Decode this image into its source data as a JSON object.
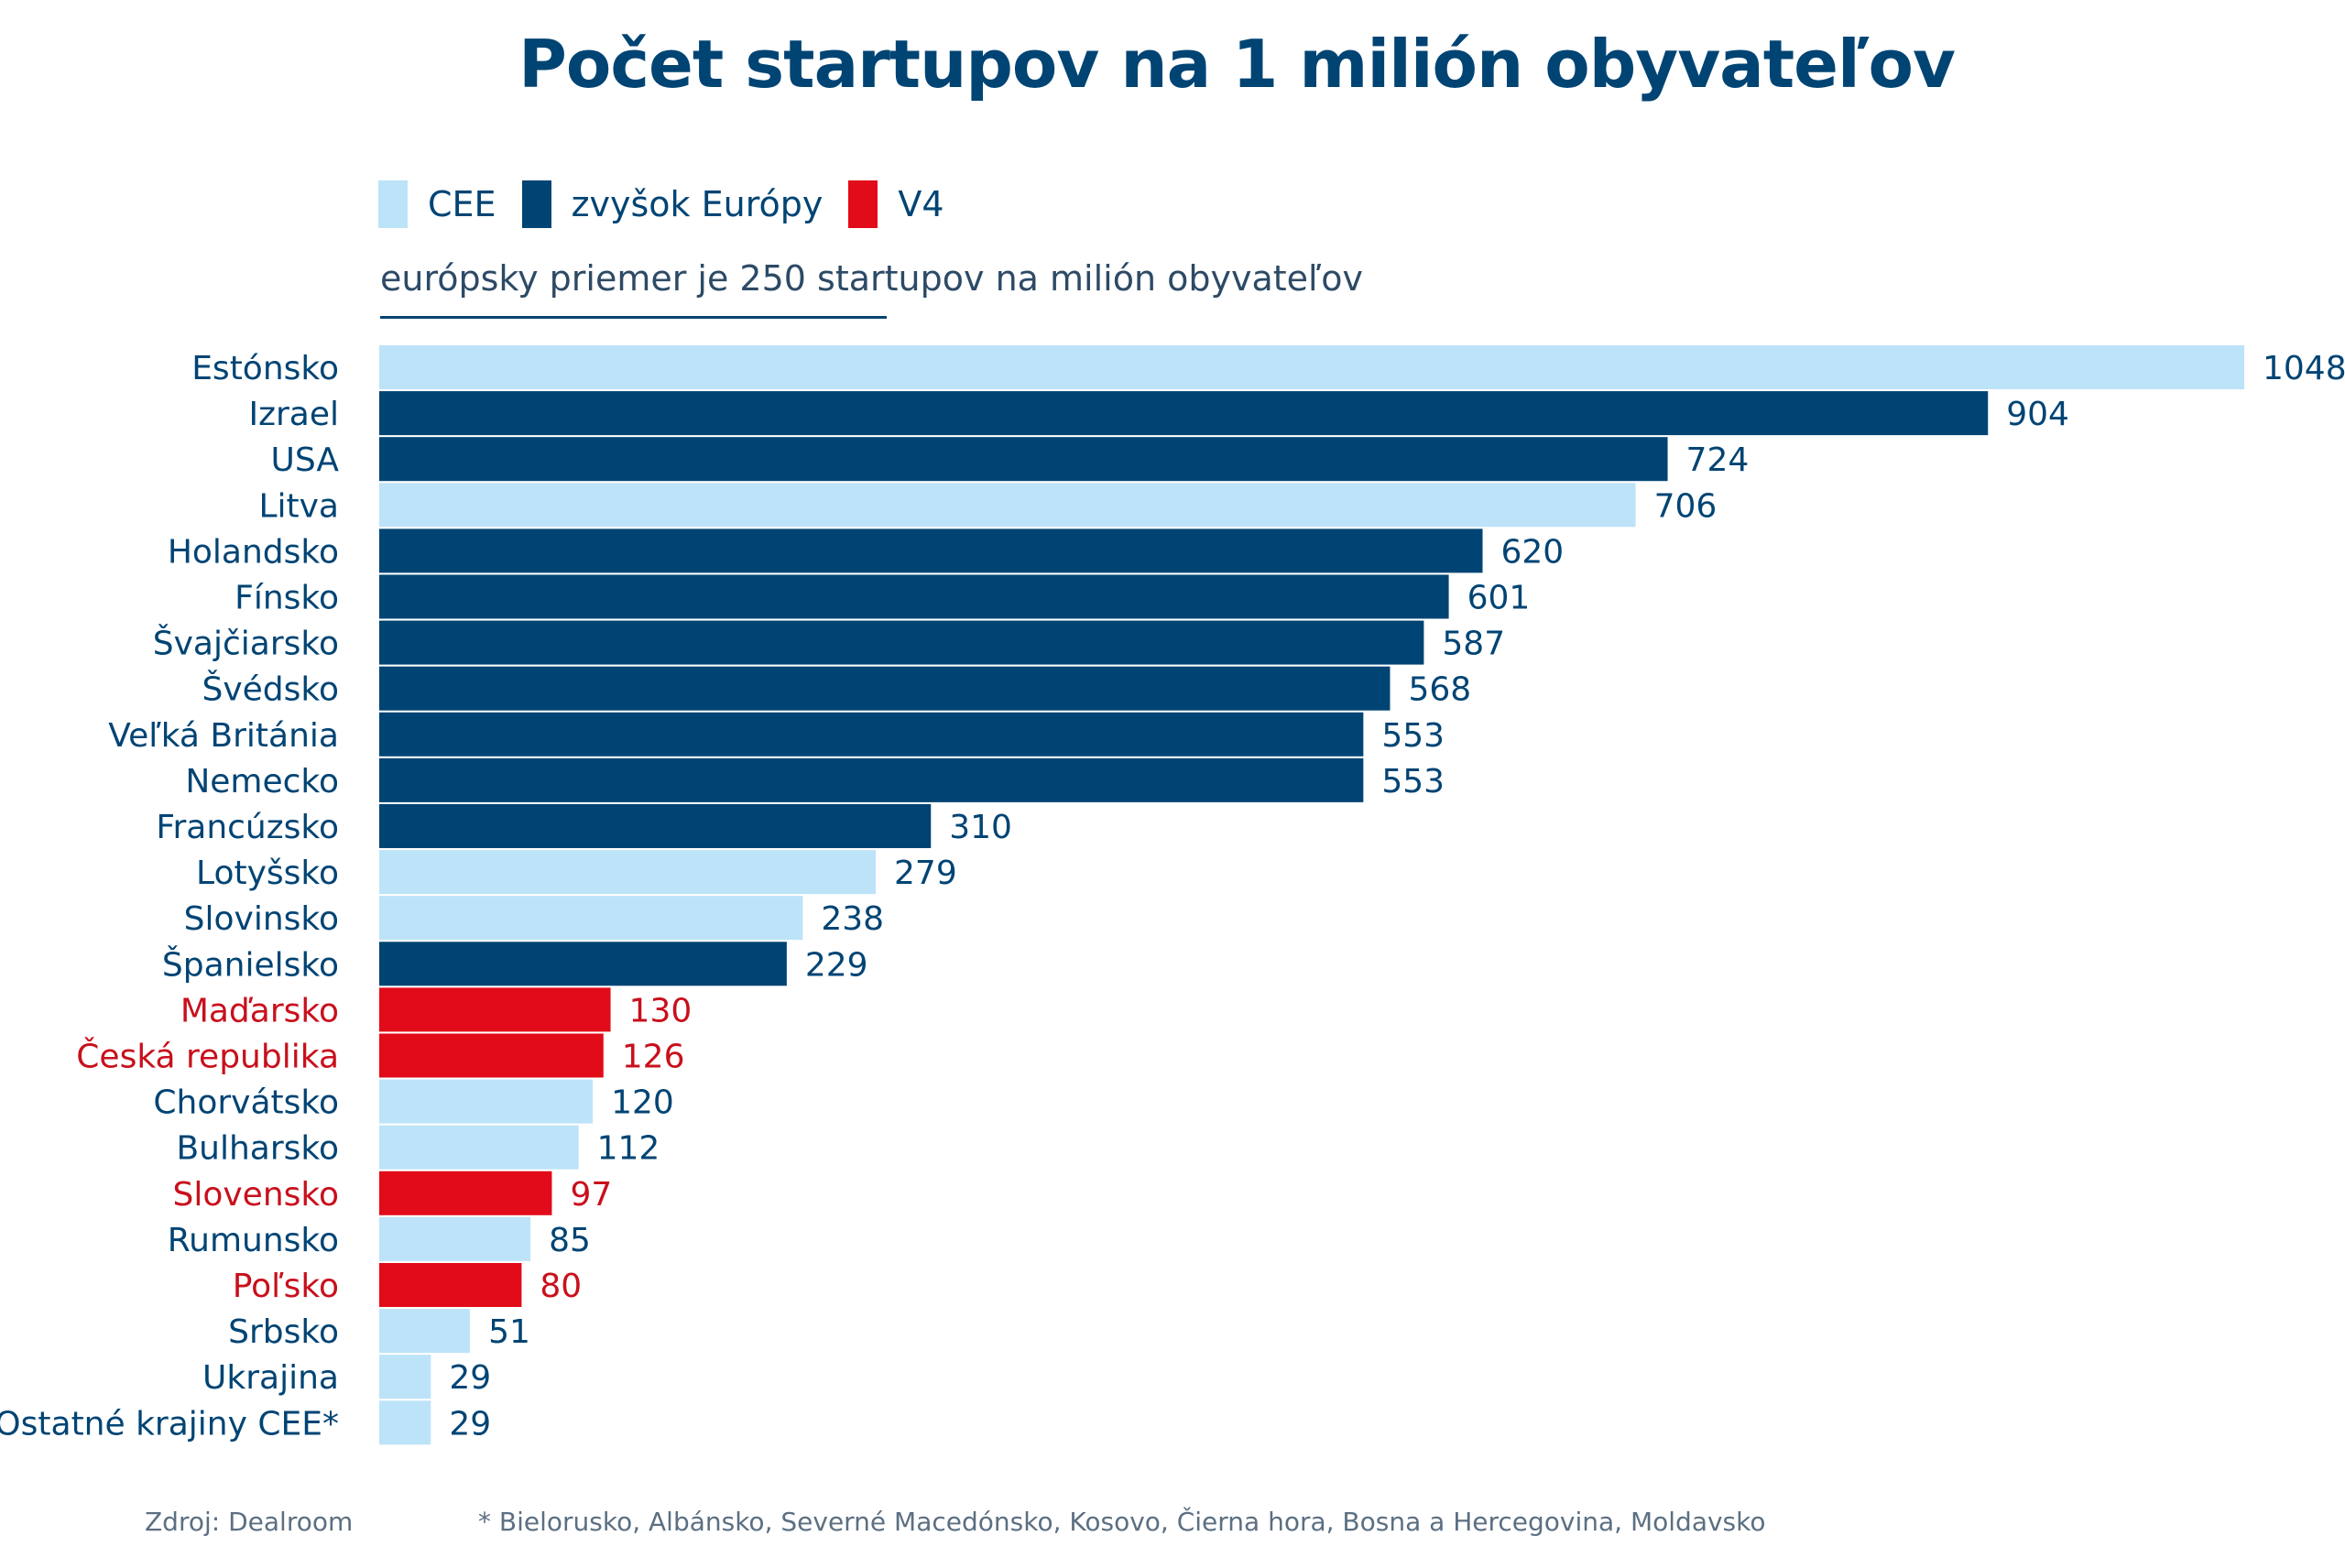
{
  "title": "Počet startupov na 1 milión obyvateľov",
  "legend": [
    {
      "label": "CEE",
      "color": "#bde3f8"
    },
    {
      "label": "zvyšok Európy",
      "color": "#004474"
    },
    {
      "label": "V4",
      "color": "#e20b19"
    }
  ],
  "note": "európsky priemer je 250 startupov na milión obyvateľov",
  "source": "Zdroj: Dealroom",
  "footnote": "* Bielorusko, Albánsko, Severné Macedónsko, Kosovo, Čierna hora, Bosna a Hercegovina, Moldavsko",
  "colors": {
    "CEE": "#bde3f8",
    "zvyšok Európy": "#004474",
    "V4": "#e20b19"
  },
  "text_colors": {
    "CEE": "#004474",
    "zvyšok Európy": "#004474",
    "V4": "#c8101c"
  },
  "chart_data": {
    "type": "bar",
    "orientation": "horizontal",
    "title": "Počet startupov na 1 milión obyvateľov",
    "xlabel": "",
    "ylabel": "",
    "xlim": [
      0,
      1048
    ],
    "legend_position": "top-left",
    "categories": [
      "Estónsko",
      "Izrael ",
      "USA",
      "Litva",
      "Holandsko",
      "Fínsko",
      "Švajčiarsko",
      "Švédsko",
      "Veľká Británia",
      "Nemecko",
      "Francúzsko",
      "Lotyšsko",
      "Slovinsko",
      "Španielsko",
      "Maďarsko",
      "Česká republika",
      "Chorvátsko",
      "Bulharsko",
      "Slovensko",
      "Rumunsko",
      "Poľsko",
      "Srbsko",
      "Ukrajina",
      "Ostatné krajiny CEE*"
    ],
    "values": [
      1048,
      904,
      724,
      706,
      620,
      601,
      587,
      568,
      553,
      553,
      310,
      279,
      238,
      229,
      130,
      126,
      120,
      112,
      97,
      85,
      80,
      51,
      29,
      29
    ],
    "groups": [
      "CEE",
      "zvyšok Európy",
      "zvyšok Európy",
      "CEE",
      "zvyšok Európy",
      "zvyšok Európy",
      "zvyšok Európy",
      "zvyšok Európy",
      "zvyšok Európy",
      "zvyšok Európy",
      "zvyšok Európy",
      "CEE",
      "CEE",
      "zvyšok Európy",
      "V4",
      "V4",
      "CEE",
      "CEE",
      "V4",
      "CEE",
      "V4",
      "CEE",
      "CEE",
      "CEE"
    ]
  }
}
